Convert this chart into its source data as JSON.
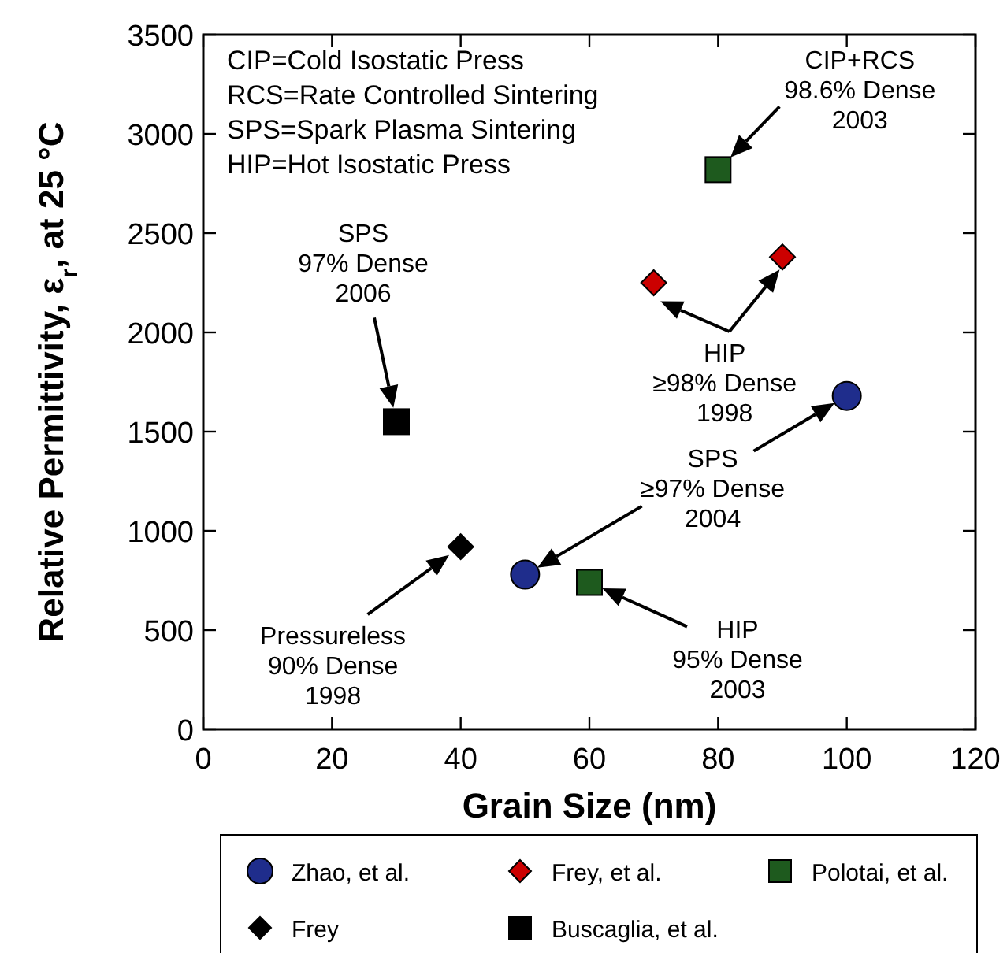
{
  "chart_data": {
    "type": "scatter",
    "xlabel": "Grain Size (nm)",
    "ylabel": "Relative Permittivity, ε$_{r}$, at 25 °C",
    "xlim": [
      0,
      120
    ],
    "xticks": [
      0,
      20,
      40,
      60,
      80,
      100,
      120
    ],
    "ylim": [
      0,
      3500
    ],
    "yticks": [
      0,
      500,
      1000,
      1500,
      2000,
      2500,
      3000,
      3500
    ],
    "grid": false,
    "legend": "bottom",
    "series": [
      {
        "name": "Zhao, et al.",
        "color": "#1f2d8c",
        "marker": "circle",
        "x": [
          50,
          100
        ],
        "values": [
          780,
          1680
        ]
      },
      {
        "name": "Frey, et al.",
        "color": "#cc0000",
        "marker": "diamond",
        "x": [
          70,
          90
        ],
        "values": [
          2250,
          2380
        ]
      },
      {
        "name": "Polotai, et al.",
        "color": "#1e5a1e",
        "marker": "square",
        "x": [
          80,
          60
        ],
        "values": [
          2820,
          740
        ]
      },
      {
        "name": "Frey",
        "color": "#000000",
        "marker": "diamond",
        "x": [
          40
        ],
        "values": [
          920
        ]
      },
      {
        "name": "Buscaglia, et al.",
        "color": "#000000",
        "marker": "square",
        "x": [
          30
        ],
        "values": [
          1550
        ]
      }
    ],
    "annotations": [
      "CIP=Cold Isostatic Press",
      "RCS=Rate Controlled Sintering",
      "SPS=Spark Plasma Sintering",
      "HIP=Hot Isostatic Press",
      {
        "text": "CIP+RCS\n98.6% Dense\n2003",
        "x": 80,
        "y": 2820
      },
      "SPS\n97% Dense\n2006",
      {
        "text": "HIP\n≥98% Dense\n1998",
        "x": 70,
        "y": 2250
      },
      "SPS\n≥97% Dense\n2004",
      "Pressureless\n90% Dense\n1998",
      "HIP\n95% Dense\n2003"
    ]
  }
}
